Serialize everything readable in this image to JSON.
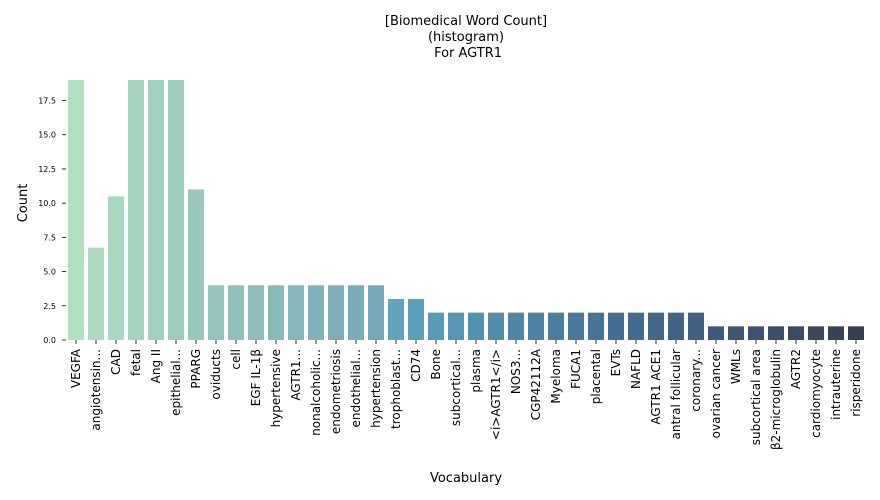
{
  "chart_data": {
    "type": "bar",
    "title": "[Biomedical Word Count]\n(histogram)\n For AGTR1",
    "xlabel": "Vocabulary",
    "ylabel": "Count",
    "ylim": [
      0,
      19
    ],
    "yticks": [
      "0.0",
      "2.5",
      "5.0",
      "7.5",
      "10.0",
      "12.5",
      "15.0",
      "17.5"
    ],
    "grid": false,
    "categories": [
      "VEGFA",
      "angiotensin...",
      "CAD",
      "fetal",
      "Ang II",
      "epithelial...",
      "PPARG",
      "oviducts",
      "cell",
      "EGF IL-1β",
      "hypertensive",
      "AGTR1...",
      "nonalcoholic...",
      "endometriosis",
      "endothelial...",
      "hypertension",
      "trophoblast...",
      "CD74",
      "Bone",
      "subcortical...",
      "plasma",
      "<i>AGTR1</i>",
      "NOS3...",
      "CGP42112A",
      "Myeloma",
      "FUCA1",
      "placental",
      "EVTs",
      "NAFLD",
      "AGTR1 ACE1",
      "antral follicular",
      "coronary...",
      "ovarian cancer",
      "WMLs",
      "subcortical area",
      "β2-microglobulin",
      "AGTR2",
      "cardiomyocyte",
      "intrauterine",
      "risperidone"
    ],
    "values": [
      19,
      6.75,
      10.5,
      19,
      19,
      19,
      11,
      4,
      4,
      4,
      4,
      4,
      4,
      4,
      4,
      4,
      3,
      3,
      2,
      2,
      2,
      2,
      2,
      2,
      2,
      2,
      2,
      2,
      2,
      2,
      2,
      2,
      1,
      1,
      1,
      1,
      1,
      1,
      1,
      1
    ],
    "colors": [
      "#b2dfc0",
      "#aedbbf",
      "#aad7bf",
      "#a6d3be",
      "#a2d0bd",
      "#9eccbd",
      "#9ac8bc",
      "#96c4bc",
      "#92c1bb",
      "#8ebdbb",
      "#8ab9ba",
      "#86b6ba",
      "#82b2b9",
      "#7eafb9",
      "#7aacb8",
      "#76a9b8",
      "#60a5bd",
      "#5aa0bb",
      "#579bb8",
      "#5496b4",
      "#5291b0",
      "#508cac",
      "#4e87a8",
      "#4c82a4",
      "#4a7da0",
      "#48789c",
      "#467498",
      "#446f94",
      "#436b90",
      "#42678b",
      "#416386",
      "#405f81",
      "#3f5b7b",
      "#3e5775",
      "#3d536f",
      "#3c4f69",
      "#3b4b63",
      "#3a475d",
      "#394357",
      "#383f50"
    ]
  }
}
